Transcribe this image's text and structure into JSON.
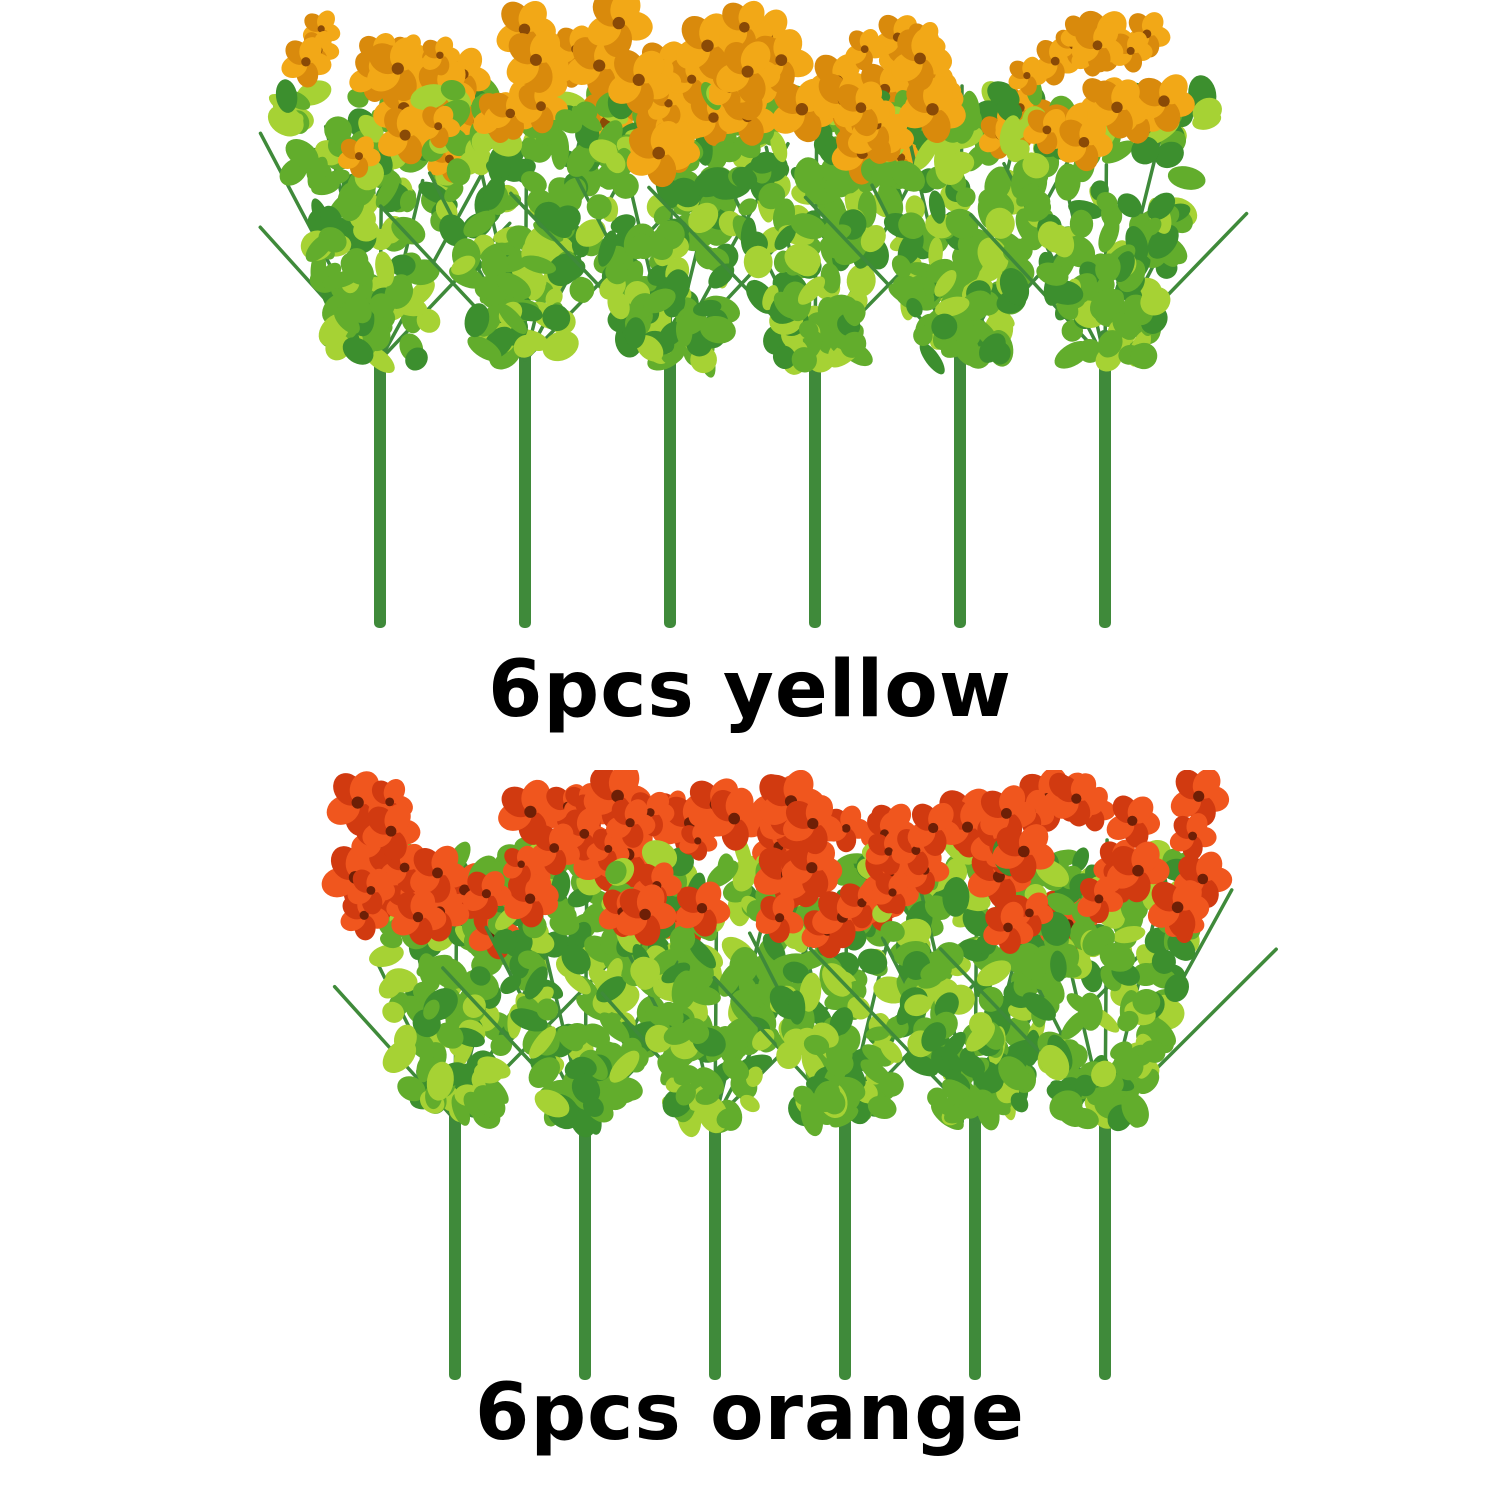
{
  "groups": [
    {
      "id": "yellow",
      "caption": "6pcs yellow",
      "bouquet_count": 6,
      "flower_color": "#f2a817",
      "flower_shade": "#d98a0c",
      "center_color": "#8a4a06"
    },
    {
      "id": "orange",
      "caption": "6pcs orange",
      "bouquet_count": 6,
      "flower_color": "#f0561e",
      "flower_shade": "#d13a10",
      "center_color": "#6e1f06"
    }
  ],
  "colors": {
    "stem": "#3f8a3a",
    "leaf_dark": "#3c8f2e",
    "leaf_mid": "#62ad2c",
    "leaf_light": "#a6d234",
    "background": "#ffffff"
  }
}
